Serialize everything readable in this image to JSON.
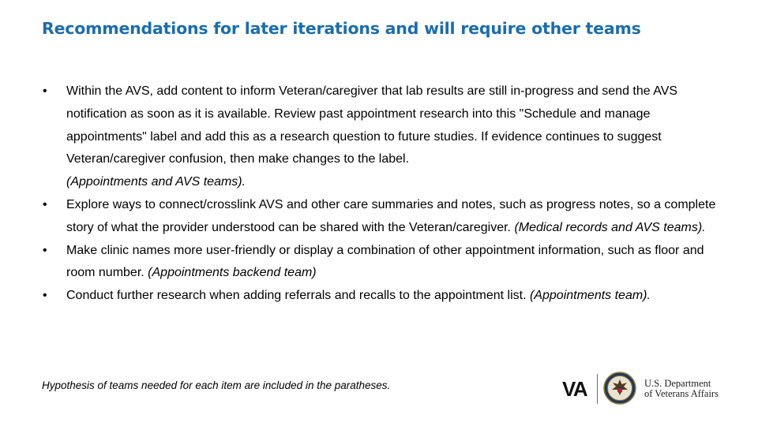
{
  "title": "Recommendations for later iterations and will require other teams",
  "bullets": [
    {
      "text": "Within the AVS, add content to inform Veteran/caregiver that lab results are still in-progress and send the AVS notification as soon as it is available. Review past appointment research into this \"Schedule and manage appointments\" label and add this as a research question to future studies. If evidence continues to suggest Veteran/caregiver confusion, then make changes to the label.",
      "teams": "(Appointments and AVS teams)."
    },
    {
      "text": "Explore ways to connect/crosslink AVS and other care summaries and notes, such as progress notes, so a complete story of what the provider understood can be shared with the Veteran/caregiver.",
      "teams": "(Medical records and AVS teams)."
    },
    {
      "text": "Make clinic names more user-friendly or display a combination of other appointment information, such as floor and room number.",
      "teams": "(Appointments backend team)"
    },
    {
      "text": "Conduct further research when adding referrals and recalls to the appointment list.",
      "teams": "(Appointments team)."
    }
  ],
  "bullet_symbol": "•",
  "footnote": "Hypothesis of teams needed for each item are included in the paratheses.",
  "logo": {
    "wordmark": "VA",
    "dept_line1": "U.S. Department",
    "dept_line2": "of Veterans Affairs",
    "seal_icon": "va-seal-icon"
  },
  "colors": {
    "title": "#1a6db0",
    "text": "#000000"
  }
}
